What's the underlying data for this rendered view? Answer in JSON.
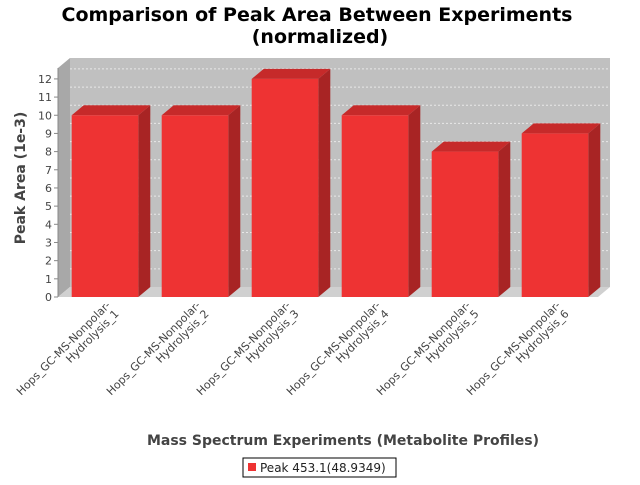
{
  "chart_data": {
    "type": "bar",
    "style": "3d",
    "title_line1": "Comparison of Peak Area Between Experiments",
    "title_line2": "(normalized)",
    "xlabel": "Mass Spectrum Experiments (Metabolite Profiles)",
    "ylabel": "Peak Area (1e-3)",
    "ylim": [
      0,
      12.6
    ],
    "yticks": [
      "0",
      "1",
      "2",
      "3",
      "4",
      "5",
      "6",
      "7",
      "8",
      "9",
      "10",
      "11",
      "12"
    ],
    "grid": true,
    "categories": [
      [
        "Hops_GC-MS-Nonpolar-",
        "Hydrolysis_1"
      ],
      [
        "Hops_GC-MS-Nonpolar-",
        "Hydrolysis_2"
      ],
      [
        "Hops_GC-MS-Nonpolar-",
        "Hydrolysis_3"
      ],
      [
        "Hops_GC-MS-Nonpolar-",
        "Hydrolysis_4"
      ],
      [
        "Hops_GC-MS-Nonpolar-",
        "Hydrolysis_5"
      ],
      [
        "Hops_GC-MS-Nonpolar-",
        "Hydrolysis_6"
      ]
    ],
    "series": [
      {
        "name": "Peak 453.1(48.9349)",
        "values": [
          10,
          10,
          12,
          10,
          8,
          9
        ],
        "color": "#ee3333"
      }
    ],
    "legend_position": "bottom-center",
    "colors": {
      "plot_background": "#c0c0c0",
      "wall_side": "#a8a8a8",
      "floor": "#d0d0d0",
      "bar_front": "#ee3333",
      "bar_top": "#c62a2a",
      "bar_side": "#a82424"
    }
  }
}
